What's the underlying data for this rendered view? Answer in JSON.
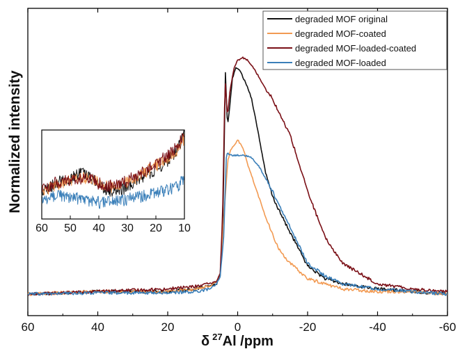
{
  "chart_data": {
    "type": "line",
    "xlabel_symbol": "δ",
    "xlabel_sup": "27",
    "xlabel_rest": "Al /ppm",
    "ylabel": "Normalized intensity",
    "xlim": [
      60,
      -60
    ],
    "x_reversed": true,
    "xticks": [
      60,
      40,
      20,
      0,
      -20,
      -40,
      -60
    ],
    "xtick_labels": [
      "60",
      "40",
      "20",
      "0",
      "-20",
      "-40",
      "-60"
    ],
    "ylim": [
      0,
      1.05
    ],
    "y_tick_labels_shown": false,
    "grid": false,
    "legend_position": "top-right",
    "series": [
      {
        "name": "degraded MOF original",
        "color": "#111111",
        "x": [
          60,
          40,
          20,
          12,
          8,
          6,
          5,
          4.2,
          3.5,
          2.9,
          2.2,
          1.5,
          0.5,
          0,
          -1,
          -3,
          -4,
          -6,
          -8,
          -10,
          -12,
          -15,
          -20,
          -25,
          -30,
          -40,
          -50,
          -60
        ],
        "y": [
          0.0,
          0.01,
          0.01,
          0.02,
          0.03,
          0.04,
          0.07,
          0.3,
          0.86,
          0.65,
          0.74,
          0.84,
          0.88,
          0.88,
          0.86,
          0.8,
          0.76,
          0.62,
          0.47,
          0.38,
          0.32,
          0.24,
          0.11,
          0.06,
          0.04,
          0.02,
          0.01,
          0.0
        ]
      },
      {
        "name": "degraded MOF-coated",
        "color": "#f29a52",
        "x": [
          60,
          40,
          20,
          12,
          8,
          6,
          5,
          4,
          2.8,
          2,
          1,
          0,
          -1,
          -2,
          -3,
          -5,
          -8,
          -10,
          -12,
          -15,
          -20,
          -25,
          -30,
          -40,
          -50,
          -60
        ],
        "y": [
          0.0,
          0.01,
          0.01,
          0.02,
          0.03,
          0.05,
          0.08,
          0.29,
          0.52,
          0.56,
          0.58,
          0.6,
          0.58,
          0.55,
          0.5,
          0.42,
          0.3,
          0.23,
          0.17,
          0.12,
          0.06,
          0.04,
          0.02,
          0.01,
          0.01,
          0.0
        ]
      },
      {
        "name": "degraded MOF-loaded-coated",
        "color": "#7a0f16",
        "x": [
          60,
          40,
          20,
          12,
          8,
          6,
          5,
          4.3,
          3.6,
          2.9,
          2.2,
          1,
          0,
          -1.5,
          -3,
          -5,
          -8,
          -10,
          -12,
          -15,
          -20,
          -25,
          -30,
          -40,
          -50,
          -60
        ],
        "y": [
          0.0,
          0.01,
          0.02,
          0.03,
          0.04,
          0.05,
          0.08,
          0.31,
          0.84,
          0.69,
          0.79,
          0.88,
          0.91,
          0.92,
          0.91,
          0.87,
          0.8,
          0.76,
          0.7,
          0.62,
          0.4,
          0.22,
          0.12,
          0.04,
          0.02,
          0.01
        ]
      },
      {
        "name": "degraded MOF-loaded",
        "color": "#3a7fb9",
        "x": [
          60,
          40,
          20,
          12,
          8,
          6,
          5,
          4,
          3.2,
          2,
          0,
          -2,
          -4,
          -6,
          -8,
          -10,
          -12,
          -15,
          -20,
          -25,
          -30,
          -40,
          -50,
          -60
        ],
        "y": [
          0.0,
          0.005,
          0.005,
          0.01,
          0.02,
          0.04,
          0.07,
          0.22,
          0.55,
          0.54,
          0.54,
          0.54,
          0.53,
          0.5,
          0.45,
          0.4,
          0.34,
          0.26,
          0.12,
          0.07,
          0.04,
          0.02,
          0.01,
          0.0
        ]
      }
    ],
    "inset": {
      "xlim": [
        60,
        10
      ],
      "x_reversed": true,
      "xticks": [
        60,
        50,
        40,
        30,
        20,
        10
      ],
      "xtick_labels": [
        "60",
        "50",
        "40",
        "30",
        "20",
        "10"
      ],
      "ylim": [
        0,
        1
      ],
      "series": [
        {
          "name": "degraded MOF original",
          "x": [
            60,
            55,
            50,
            46,
            43,
            40,
            37,
            34,
            30,
            26,
            22,
            18,
            15,
            12,
            10
          ],
          "y": [
            0.22,
            0.33,
            0.4,
            0.46,
            0.4,
            0.32,
            0.24,
            0.22,
            0.28,
            0.38,
            0.46,
            0.56,
            0.66,
            0.8,
            1.0
          ]
        },
        {
          "name": "degraded MOF-coated",
          "x": [
            60,
            55,
            50,
            46,
            43,
            40,
            37,
            34,
            30,
            26,
            22,
            18,
            15,
            12,
            10
          ],
          "y": [
            0.22,
            0.31,
            0.36,
            0.4,
            0.39,
            0.33,
            0.29,
            0.28,
            0.34,
            0.42,
            0.52,
            0.6,
            0.68,
            0.78,
            0.92
          ]
        },
        {
          "name": "degraded MOF-loaded-coated",
          "x": [
            60,
            55,
            50,
            46,
            43,
            40,
            37,
            34,
            30,
            26,
            22,
            18,
            15,
            12,
            10
          ],
          "y": [
            0.24,
            0.34,
            0.37,
            0.4,
            0.38,
            0.33,
            0.3,
            0.3,
            0.36,
            0.45,
            0.55,
            0.64,
            0.72,
            0.84,
            1.0
          ]
        },
        {
          "name": "degraded MOF-loaded",
          "x": [
            60,
            55,
            50,
            46,
            43,
            40,
            37,
            34,
            30,
            26,
            22,
            18,
            15,
            12,
            10
          ],
          "y": [
            0.12,
            0.17,
            0.15,
            0.12,
            0.1,
            0.08,
            0.08,
            0.1,
            0.12,
            0.15,
            0.18,
            0.22,
            0.26,
            0.3,
            0.4
          ]
        }
      ]
    }
  }
}
